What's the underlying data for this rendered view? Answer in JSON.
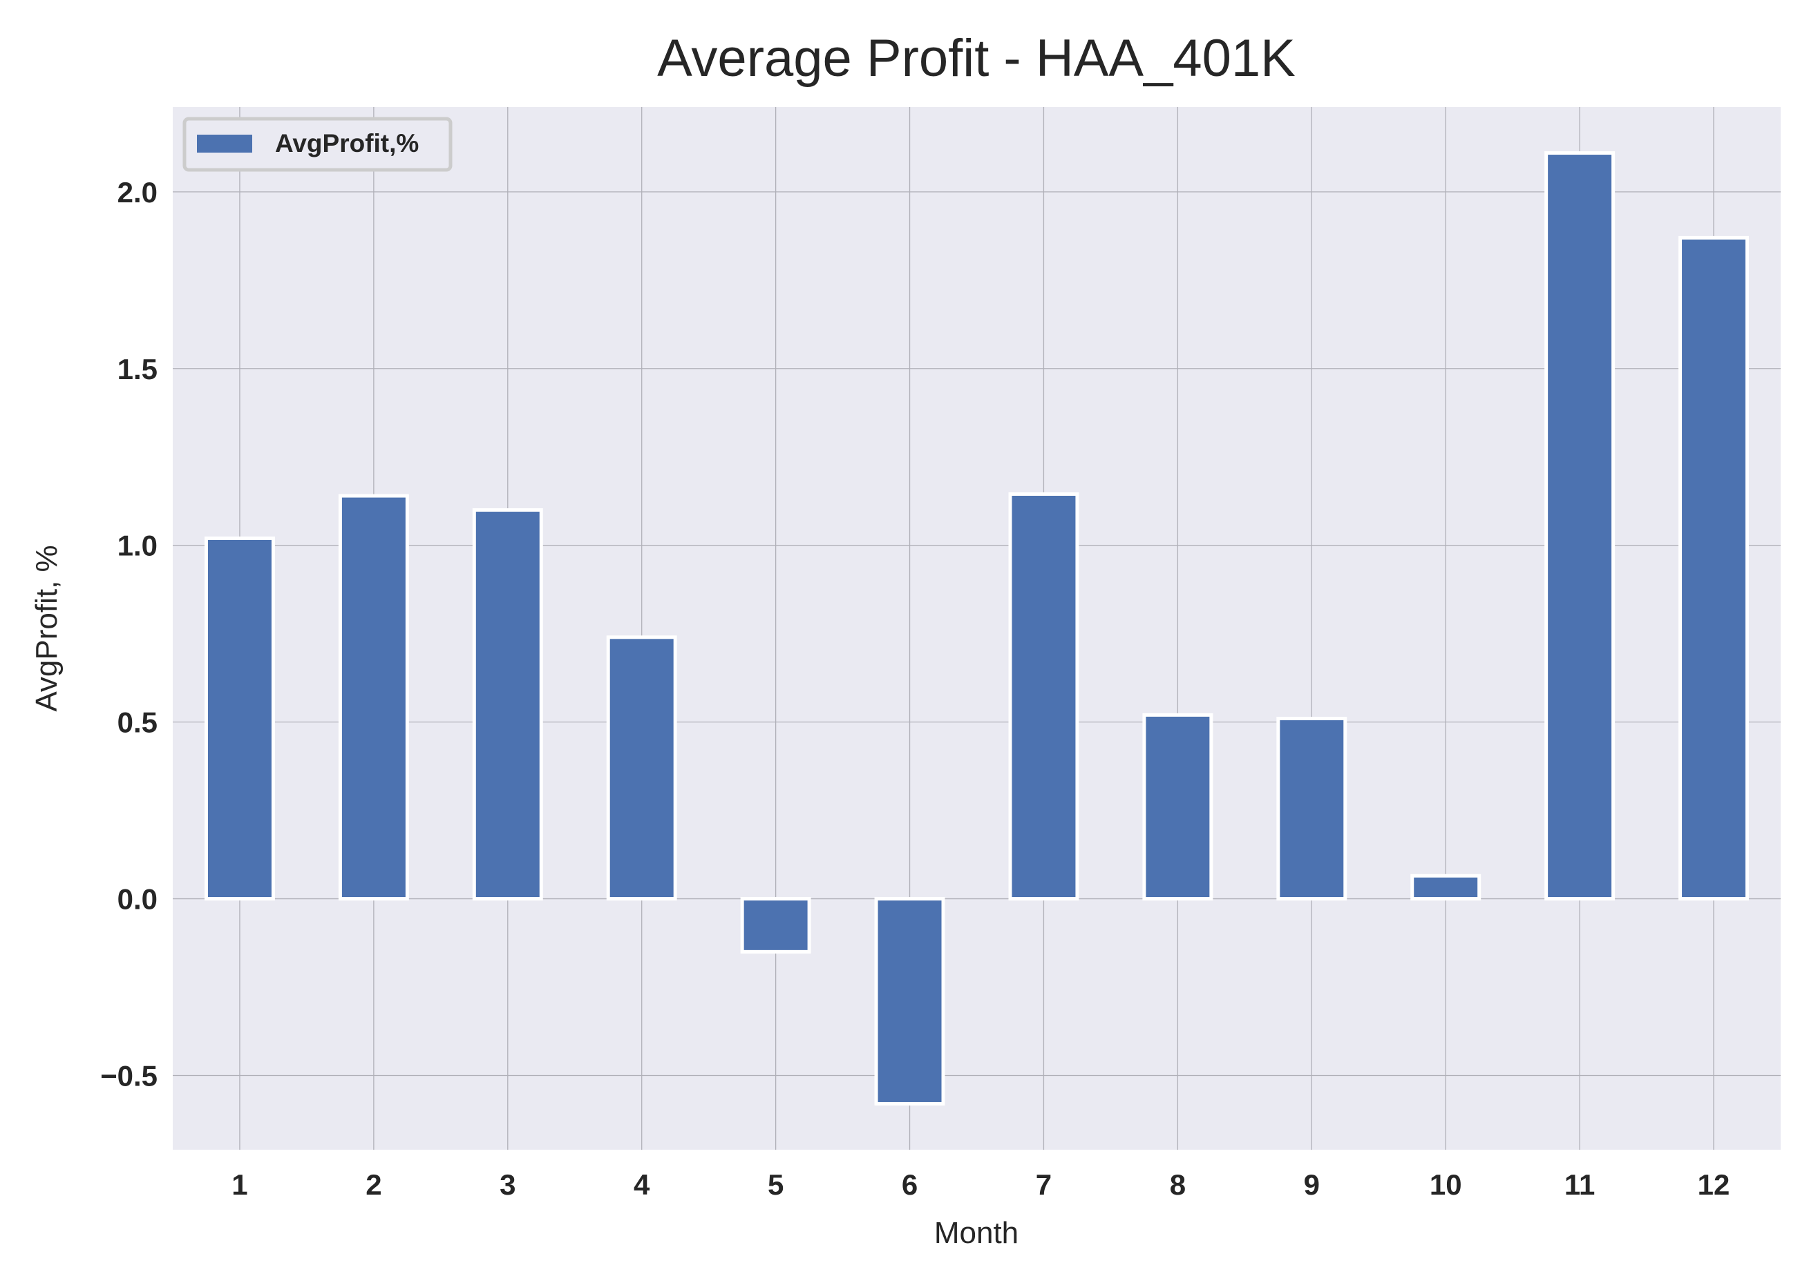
{
  "chart_data": {
    "type": "bar",
    "title": "Average Profit - HAA_401K",
    "xlabel": "Month",
    "ylabel": "AvgProfit, %",
    "categories": [
      "1",
      "2",
      "3",
      "4",
      "5",
      "6",
      "7",
      "8",
      "9",
      "10",
      "11",
      "12"
    ],
    "series": [
      {
        "name": "AvgProfit,%",
        "values": [
          1.02,
          1.14,
          1.1,
          0.74,
          -0.15,
          -0.58,
          1.145,
          0.52,
          0.51,
          0.065,
          2.11,
          1.87
        ],
        "color": "#4c72b0"
      }
    ],
    "ylim": [
      -0.71,
      2.24
    ],
    "yticks": [
      -0.5,
      0.0,
      0.5,
      1.0,
      1.5,
      2.0
    ],
    "ytick_labels": [
      "−0.5",
      "0.0",
      "0.5",
      "1.0",
      "1.5",
      "2.0"
    ],
    "grid": true,
    "legend_position": "upper-left",
    "colors": {
      "plot_background": "#eaeaf2",
      "grid": "#b0b0b8",
      "bar_edge": "#ffffff"
    }
  }
}
